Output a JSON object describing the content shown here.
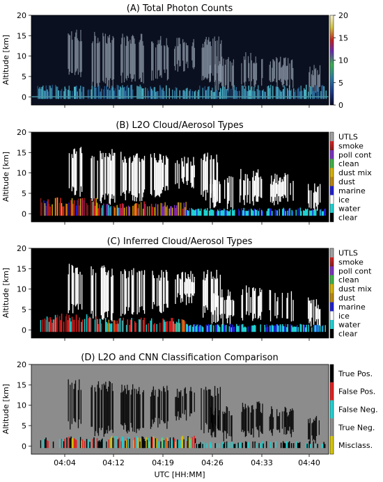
{
  "figure": {
    "x_axis_label": "UTC [HH:MM]",
    "x_ticks": [
      "04:04",
      "04:12",
      "04:19",
      "04:26",
      "04:33",
      "04:40"
    ]
  },
  "chart_data": [
    {
      "id": "A",
      "type": "heatmap",
      "title": "(A) Total Photon Counts",
      "ylabel": "Altitude [km]",
      "ylim": [
        -2,
        20
      ],
      "y_ticks": [
        0,
        5,
        10,
        15,
        20
      ],
      "colorbar": {
        "ticks": [
          "0",
          "5",
          "10",
          "15",
          "20"
        ],
        "range": [
          0,
          20
        ]
      }
    },
    {
      "id": "B",
      "type": "heatmap",
      "title": "(B) L2O Cloud/Aerosol Types",
      "ylabel": "Altitude [km]",
      "ylim": [
        -2,
        20
      ],
      "y_ticks": [
        0,
        5,
        10,
        15,
        20
      ],
      "classes": [
        {
          "label": "UTLS",
          "color": "#a0a0a0"
        },
        {
          "label": "smoke",
          "color": "#8b1a1a"
        },
        {
          "label": "poll cont",
          "color": "#7b2fbf"
        },
        {
          "label": "clean",
          "color": "#3cb043"
        },
        {
          "label": "dust mix",
          "color": "#d4b000"
        },
        {
          "label": "dust",
          "color": "#b8860b"
        },
        {
          "label": "marine",
          "color": "#1f1fd0"
        },
        {
          "label": "ice",
          "color": "#ffffff"
        },
        {
          "label": "water",
          "color": "#20d0d0"
        },
        {
          "label": "clear",
          "color": "#000000"
        }
      ]
    },
    {
      "id": "C",
      "type": "heatmap",
      "title": "(C) Inferred Cloud/Aerosol Types",
      "ylabel": "Altitude [km]",
      "ylim": [
        -2,
        20
      ],
      "y_ticks": [
        0,
        5,
        10,
        15,
        20
      ],
      "classes": [
        {
          "label": "UTLS",
          "color": "#a0a0a0"
        },
        {
          "label": "smoke",
          "color": "#8b1a1a"
        },
        {
          "label": "poll cont",
          "color": "#7b2fbf"
        },
        {
          "label": "clean",
          "color": "#3cb043"
        },
        {
          "label": "dust mix",
          "color": "#d4b000"
        },
        {
          "label": "dust",
          "color": "#b8860b"
        },
        {
          "label": "marine",
          "color": "#1f1fd0"
        },
        {
          "label": "ice",
          "color": "#ffffff"
        },
        {
          "label": "water",
          "color": "#20d0d0"
        },
        {
          "label": "clear",
          "color": "#000000"
        }
      ]
    },
    {
      "id": "D",
      "type": "heatmap",
      "title": "(D) L2O and CNN Classification Comparison",
      "ylabel": "Altitude [km]",
      "ylim": [
        -2,
        20
      ],
      "y_ticks": [
        0,
        5,
        10,
        15,
        20
      ],
      "classes": [
        {
          "label": "True Pos.",
          "color": "#000000"
        },
        {
          "label": "False Pos.",
          "color": "#e02020"
        },
        {
          "label": "False Neg.",
          "color": "#20d0d0"
        },
        {
          "label": "True Neg.",
          "color": "#8c8c8c"
        },
        {
          "label": "Misclass.",
          "color": "#d4c400"
        }
      ]
    }
  ]
}
